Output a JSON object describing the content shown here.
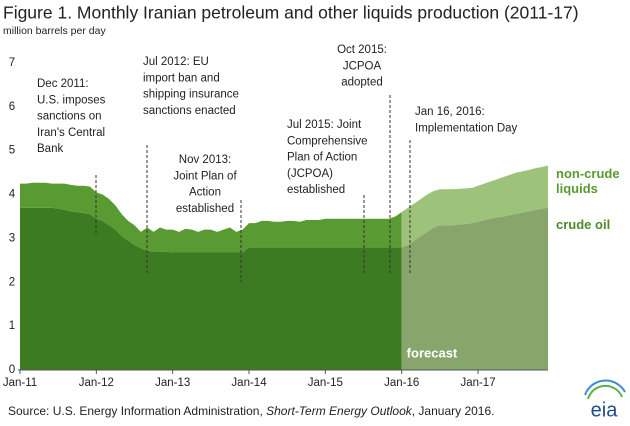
{
  "chart_data": {
    "type": "stacked_area",
    "title": "Figure 1. Monthly Iranian petroleum and other liquids production (2011-17)",
    "y_label": "million barrels per day",
    "source": [
      "Source: U.S. Energy Information  Administration, ",
      "Short-Term Energy Outlook",
      ", January 2016."
    ],
    "logo": "eia",
    "categories": [
      "Jan-11",
      null,
      null,
      null,
      null,
      null,
      null,
      null,
      null,
      null,
      null,
      null,
      "Jan-12",
      null,
      null,
      null,
      null,
      null,
      null,
      null,
      null,
      null,
      null,
      null,
      "Jan-13",
      null,
      null,
      null,
      null,
      null,
      null,
      null,
      null,
      null,
      null,
      null,
      "Jan-14",
      null,
      null,
      null,
      null,
      null,
      null,
      null,
      null,
      null,
      null,
      null,
      "Jan-15",
      null,
      null,
      null,
      null,
      null,
      null,
      null,
      null,
      null,
      null,
      null,
      "Jan-16",
      null,
      null,
      null,
      null,
      null,
      null,
      null,
      null,
      null,
      null,
      null,
      "Jan-17",
      null,
      null,
      null,
      null,
      null,
      null,
      null,
      null,
      null,
      null,
      null
    ],
    "series": [
      {
        "name": "crude oil",
        "color": "#3c7b22",
        "forecast_color": "#88a66c",
        "label_color": "#4e8a2c",
        "values": [
          3.7,
          3.7,
          3.7,
          3.7,
          3.7,
          3.7,
          3.68,
          3.65,
          3.62,
          3.6,
          3.58,
          3.55,
          3.45,
          3.4,
          3.3,
          3.2,
          3.05,
          2.95,
          2.85,
          2.78,
          2.72,
          2.7,
          2.7,
          2.7,
          2.68,
          2.68,
          2.68,
          2.68,
          2.68,
          2.68,
          2.68,
          2.68,
          2.68,
          2.68,
          2.68,
          2.68,
          2.8,
          2.8,
          2.8,
          2.8,
          2.8,
          2.8,
          2.8,
          2.8,
          2.8,
          2.8,
          2.8,
          2.8,
          2.8,
          2.8,
          2.8,
          2.8,
          2.8,
          2.8,
          2.8,
          2.8,
          2.8,
          2.8,
          2.8,
          2.8,
          2.8,
          2.85,
          2.95,
          3.05,
          3.15,
          3.25,
          3.3,
          3.3,
          3.3,
          3.32,
          3.33,
          3.35,
          3.38,
          3.42,
          3.45,
          3.48,
          3.5,
          3.53,
          3.56,
          3.59,
          3.62,
          3.65,
          3.68,
          3.7
        ]
      },
      {
        "name": "non-crude liquids",
        "color": "#5a9a32",
        "forecast_color": "#9dc27a",
        "label_color": "#5a9a32",
        "values": [
          0.55,
          0.55,
          0.57,
          0.57,
          0.57,
          0.55,
          0.57,
          0.6,
          0.6,
          0.6,
          0.62,
          0.63,
          0.6,
          0.6,
          0.6,
          0.55,
          0.5,
          0.45,
          0.45,
          0.37,
          0.53,
          0.45,
          0.55,
          0.5,
          0.52,
          0.47,
          0.54,
          0.52,
          0.47,
          0.52,
          0.52,
          0.47,
          0.52,
          0.57,
          0.47,
          0.52,
          0.55,
          0.55,
          0.6,
          0.6,
          0.58,
          0.58,
          0.6,
          0.6,
          0.58,
          0.62,
          0.62,
          0.62,
          0.65,
          0.65,
          0.65,
          0.65,
          0.65,
          0.65,
          0.65,
          0.65,
          0.65,
          0.65,
          0.65,
          0.7,
          0.8,
          0.85,
          0.85,
          0.85,
          0.85,
          0.83,
          0.82,
          0.82,
          0.82,
          0.81,
          0.81,
          0.8,
          0.82,
          0.83,
          0.85,
          0.87,
          0.9,
          0.92,
          0.94,
          0.94,
          0.94,
          0.95,
          0.95,
          0.96
        ]
      }
    ],
    "forecast": {
      "label": "forecast",
      "start": "Jan-16"
    },
    "ylim": [
      0,
      7
    ],
    "yticks": [
      0,
      1,
      2,
      3,
      4,
      5,
      6,
      7
    ],
    "grid": false,
    "annotations": [
      {
        "lines": [
          "Dec 2011:",
          "U.S. imposes",
          "sanctions on",
          "Iran's Central",
          "Bank"
        ]
      },
      {
        "lines": [
          "Jul 2012: EU",
          "import ban and",
          "shipping insurance",
          "sanctions enacted"
        ]
      },
      {
        "lines": [
          "Nov 2013:",
          "Joint Plan of",
          "Action",
          "established"
        ]
      },
      {
        "lines": [
          "Jul 2015: Joint",
          "Comprehensive",
          "Plan of Action",
          "(JCPOA)",
          "established"
        ]
      },
      {
        "lines": [
          "Oct 2015:",
          "JCPOA",
          "adopted"
        ]
      },
      {
        "lines": [
          "Jan 16, 2016:",
          "Implementation Day"
        ]
      }
    ]
  }
}
